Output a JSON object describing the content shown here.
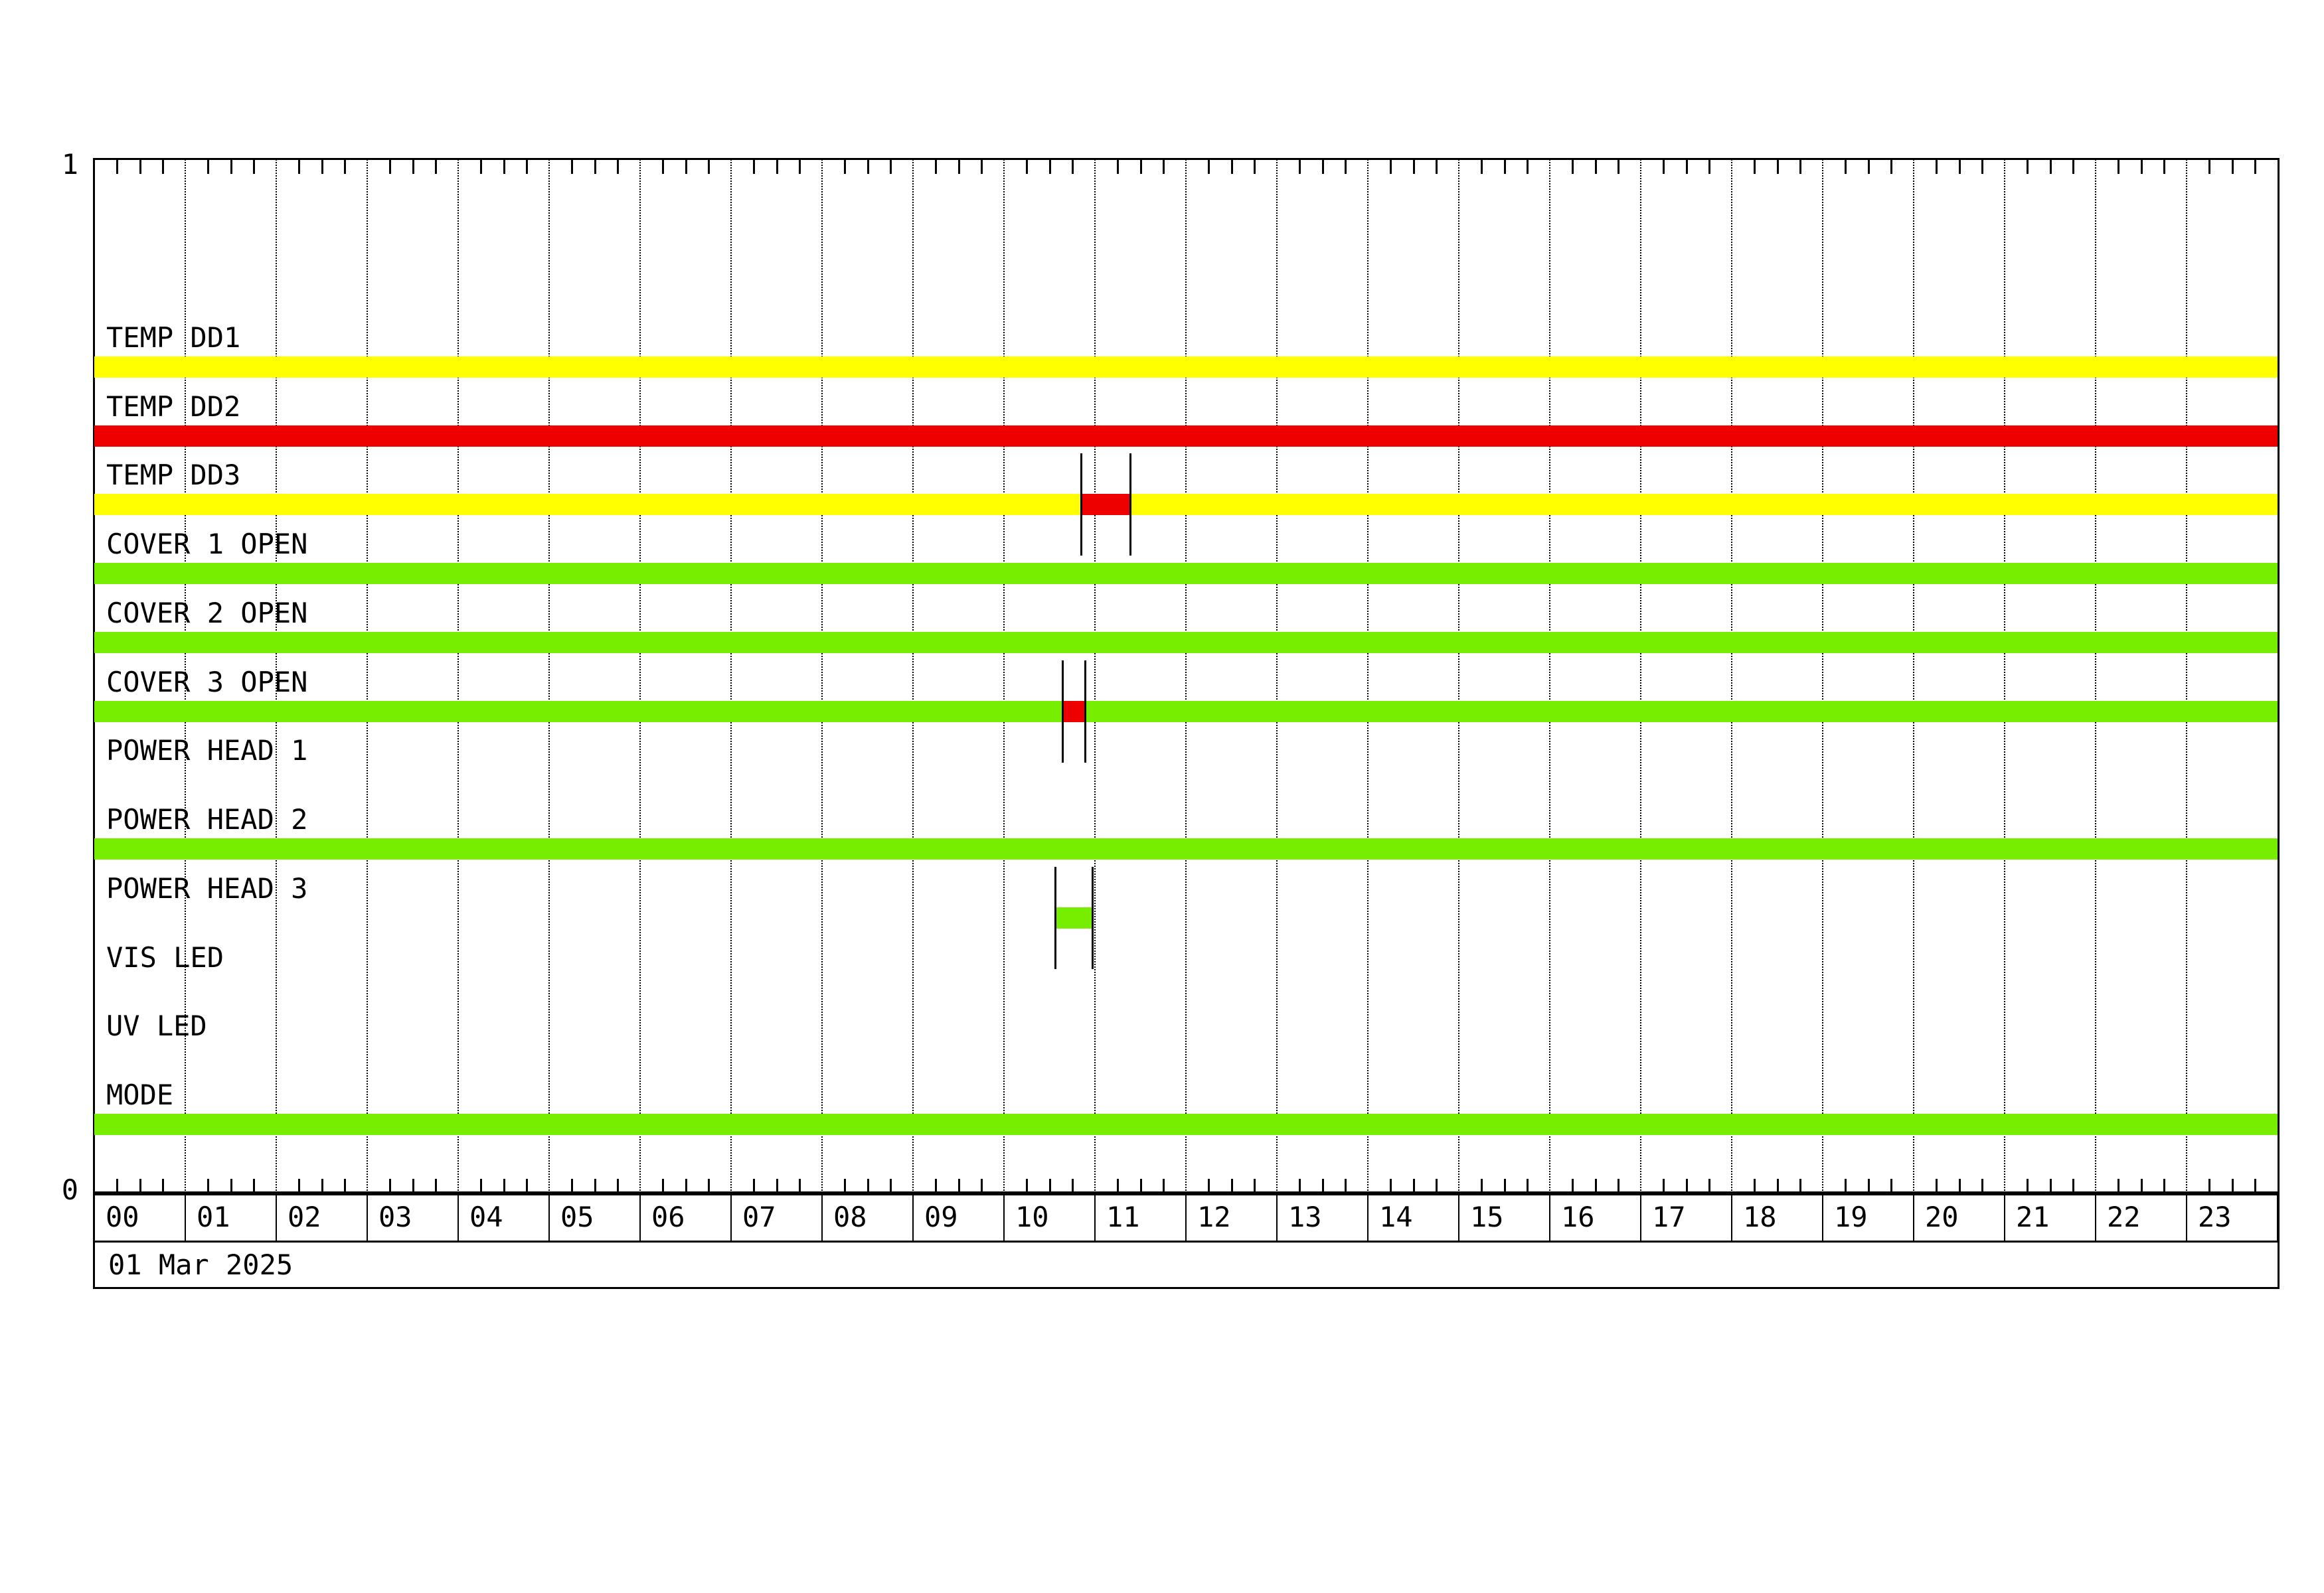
{
  "colors": {
    "yellow": "#FFFF00",
    "red": "#EE0000",
    "green": "#77EE00",
    "line": "#000000",
    "background": "#FFFFFF"
  },
  "axis": {
    "y_top_label": "1",
    "y_bottom_label": "0",
    "hour_labels": [
      "00",
      "01",
      "02",
      "03",
      "04",
      "05",
      "06",
      "07",
      "08",
      "09",
      "10",
      "11",
      "12",
      "13",
      "14",
      "15",
      "16",
      "17",
      "18",
      "19",
      "20",
      "21",
      "22",
      "23"
    ],
    "date_label": "01 Mar 2025",
    "minor_ticks_per_hour": 4,
    "gridlines": "dotted vertical line at each full hour"
  },
  "chart_data": {
    "type": "timeline-status-bars",
    "title": "",
    "x_unit": "hour of day",
    "x_range": [
      0,
      24
    ],
    "date": "01 Mar 2025",
    "ylim_labels": [
      "0",
      "1"
    ],
    "rows": [
      {
        "label": "TEMP DD1",
        "segments": [
          {
            "start": 0,
            "end": 24,
            "color": "yellow"
          }
        ]
      },
      {
        "label": "TEMP DD2",
        "segments": [
          {
            "start": 0,
            "end": 24,
            "color": "red"
          }
        ]
      },
      {
        "label": "TEMP DD3",
        "segments": [
          {
            "start": 0,
            "end": 24,
            "color": "yellow"
          },
          {
            "start": 10.85,
            "end": 11.39,
            "color": "red",
            "marked": true
          }
        ]
      },
      {
        "label": "COVER 1 OPEN",
        "segments": [
          {
            "start": 0,
            "end": 24,
            "color": "green"
          }
        ]
      },
      {
        "label": "COVER 2 OPEN",
        "segments": [
          {
            "start": 0,
            "end": 24,
            "color": "green"
          }
        ]
      },
      {
        "label": "COVER 3 OPEN",
        "segments": [
          {
            "start": 0,
            "end": 24,
            "color": "green"
          },
          {
            "start": 10.64,
            "end": 10.89,
            "color": "red",
            "marked": true
          }
        ]
      },
      {
        "label": "POWER HEAD 1",
        "segments": []
      },
      {
        "label": "POWER HEAD 2",
        "segments": [
          {
            "start": 0,
            "end": 24,
            "color": "green"
          }
        ]
      },
      {
        "label": "POWER HEAD 3",
        "segments": [
          {
            "start": 10.56,
            "end": 10.97,
            "color": "green",
            "marked": true
          }
        ]
      },
      {
        "label": "VIS LED",
        "segments": []
      },
      {
        "label": "UV LED",
        "segments": []
      },
      {
        "label": "MODE",
        "segments": [
          {
            "start": 0,
            "end": 24,
            "color": "green"
          }
        ]
      }
    ]
  }
}
